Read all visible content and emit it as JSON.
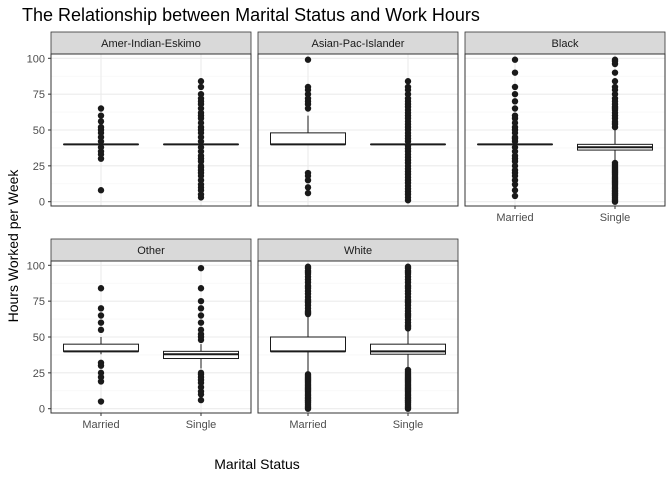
{
  "chart_data": {
    "type": "boxplot",
    "title": "The Relationship between Marital Status and Work Hours",
    "xlabel": "Marital Status",
    "ylabel": "Hours Worked per Week",
    "categories": [
      "Married",
      "Single"
    ],
    "ylim": [
      -3,
      103
    ],
    "yticks": [
      0,
      25,
      50,
      75,
      100
    ],
    "grid": true,
    "facet_layout": "3 columns x 2 rows, shared axes",
    "facets": [
      {
        "label": "Amer-Indian-Eskimo",
        "boxes": [
          {
            "category": "Married",
            "min": 40,
            "q1": 40,
            "median": 40,
            "q3": 40,
            "max": 40,
            "outliers": [
              8,
              30,
              33,
              35,
              38,
              42,
              45,
              48,
              50,
              52,
              56,
              60,
              65
            ]
          },
          {
            "category": "Single",
            "min": 40,
            "q1": 40,
            "median": 40,
            "q3": 40,
            "max": 40,
            "outliers": [
              3,
              5,
              8,
              10,
              12,
              15,
              18,
              20,
              22,
              24,
              25,
              28,
              30,
              32,
              35,
              38,
              42,
              45,
              48,
              50,
              52,
              55,
              58,
              60,
              62,
              65,
              68,
              70,
              72,
              75,
              80,
              84
            ]
          }
        ]
      },
      {
        "label": "Asian-Pac-Islander",
        "boxes": [
          {
            "category": "Married",
            "min": 40,
            "q1": 40,
            "median": 40,
            "q3": 48,
            "max": 60,
            "outliers": [
              6,
              10,
              15,
              18,
              20,
              65,
              68,
              70,
              72,
              75,
              78,
              80,
              99
            ]
          },
          {
            "category": "Single",
            "min": 40,
            "q1": 40,
            "median": 40,
            "q3": 40,
            "max": 40,
            "outliers": [
              1,
              3,
              5,
              7,
              9,
              11,
              13,
              15,
              17,
              19,
              21,
              23,
              25,
              27,
              29,
              31,
              33,
              35,
              37,
              39,
              42,
              44,
              46,
              48,
              50,
              52,
              54,
              56,
              58,
              60,
              62,
              64,
              66,
              68,
              70,
              72,
              75,
              78,
              80,
              84
            ]
          }
        ]
      },
      {
        "label": "Black",
        "boxes": [
          {
            "category": "Married",
            "min": 40,
            "q1": 40,
            "median": 40,
            "q3": 40,
            "max": 40,
            "outliers": [
              4,
              8,
              12,
              15,
              18,
              20,
              22,
              25,
              28,
              30,
              32,
              35,
              38,
              42,
              44,
              45,
              48,
              50,
              52,
              55,
              58,
              60,
              65,
              70,
              75,
              80,
              90,
              99
            ]
          },
          {
            "category": "Single",
            "min": 28,
            "q1": 36,
            "median": 38,
            "q3": 40,
            "max": 50,
            "outliers": [
              0,
              1,
              2,
              3,
              4,
              5,
              6,
              7,
              8,
              9,
              10,
              11,
              12,
              13,
              14,
              15,
              16,
              17,
              18,
              19,
              20,
              21,
              22,
              23,
              24,
              25,
              26,
              27,
              52,
              54,
              55,
              56,
              58,
              60,
              62,
              64,
              65,
              66,
              68,
              70,
              72,
              75,
              78,
              80,
              84,
              90,
              96,
              98,
              99
            ]
          }
        ]
      },
      {
        "label": "Other",
        "boxes": [
          {
            "category": "Married",
            "min": 38,
            "q1": 40,
            "median": 40,
            "q3": 45,
            "max": 50,
            "outliers": [
              5,
              19,
              22,
              25,
              30,
              32,
              55,
              60,
              65,
              70,
              84
            ]
          },
          {
            "category": "Single",
            "min": 28,
            "q1": 35,
            "median": 38,
            "q3": 40,
            "max": 45,
            "outliers": [
              6,
              10,
              12,
              15,
              18,
              20,
              22,
              24,
              25,
              48,
              50,
              52,
              55,
              60,
              65,
              70,
              75,
              84,
              98
            ]
          }
        ]
      },
      {
        "label": "White",
        "boxes": [
          {
            "category": "Married",
            "min": 25,
            "q1": 40,
            "median": 40,
            "q3": 50,
            "max": 65,
            "outliers": [
              0,
              1,
              2,
              3,
              4,
              5,
              6,
              7,
              8,
              9,
              10,
              11,
              12,
              13,
              14,
              15,
              16,
              17,
              18,
              19,
              20,
              21,
              22,
              23,
              24,
              66,
              67,
              68,
              70,
              72,
              74,
              75,
              76,
              78,
              80,
              82,
              84,
              85,
              86,
              88,
              90,
              92,
              94,
              95,
              96,
              98,
              99
            ]
          },
          {
            "category": "Single",
            "min": 28,
            "q1": 38,
            "median": 40,
            "q3": 45,
            "max": 55,
            "outliers": [
              0,
              1,
              2,
              3,
              4,
              5,
              6,
              7,
              8,
              9,
              10,
              11,
              12,
              13,
              14,
              15,
              16,
              17,
              18,
              19,
              20,
              21,
              22,
              23,
              24,
              25,
              26,
              27,
              56,
              57,
              58,
              60,
              62,
              64,
              65,
              66,
              68,
              70,
              72,
              74,
              75,
              76,
              78,
              80,
              82,
              84,
              85,
              86,
              88,
              90,
              92,
              94,
              95,
              96,
              98,
              99
            ]
          }
        ]
      }
    ]
  },
  "colors": {
    "panel_background": "#ffffff",
    "panel_border": "#333333",
    "grid_major": "#ebebeb",
    "grid_minor": "#f5f5f5",
    "strip_fill": "#d9d9d9",
    "box_stroke": "#1a1a1a",
    "outlier_fill": "#1a1a1a"
  }
}
